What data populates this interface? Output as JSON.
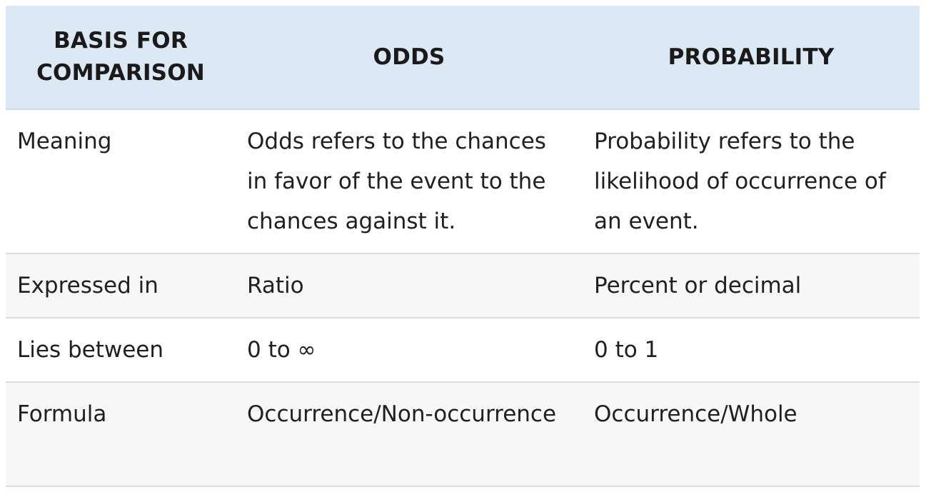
{
  "table": {
    "headers": [
      "BASIS FOR COMPARISON",
      "ODDS",
      "PROBABILITY"
    ],
    "rows": [
      {
        "basis": "Meaning",
        "odds": "Odds refers to the chances in favor of the event to the chances against it.",
        "probability": "Probability refers to the likelihood of occurrence of an event."
      },
      {
        "basis": "Expressed in",
        "odds": "Ratio",
        "probability": "Percent or decimal"
      },
      {
        "basis": "Lies between",
        "odds": "0 to ∞",
        "probability": "0 to 1"
      },
      {
        "basis": "Formula",
        "odds": "Occurrence/Non-occurrence",
        "probability": "Occurrence/Whole"
      }
    ]
  },
  "colors": {
    "header_bg": "#dce9f5",
    "row_shade": "#f7f7f7",
    "border": "#dcdcdc"
  }
}
